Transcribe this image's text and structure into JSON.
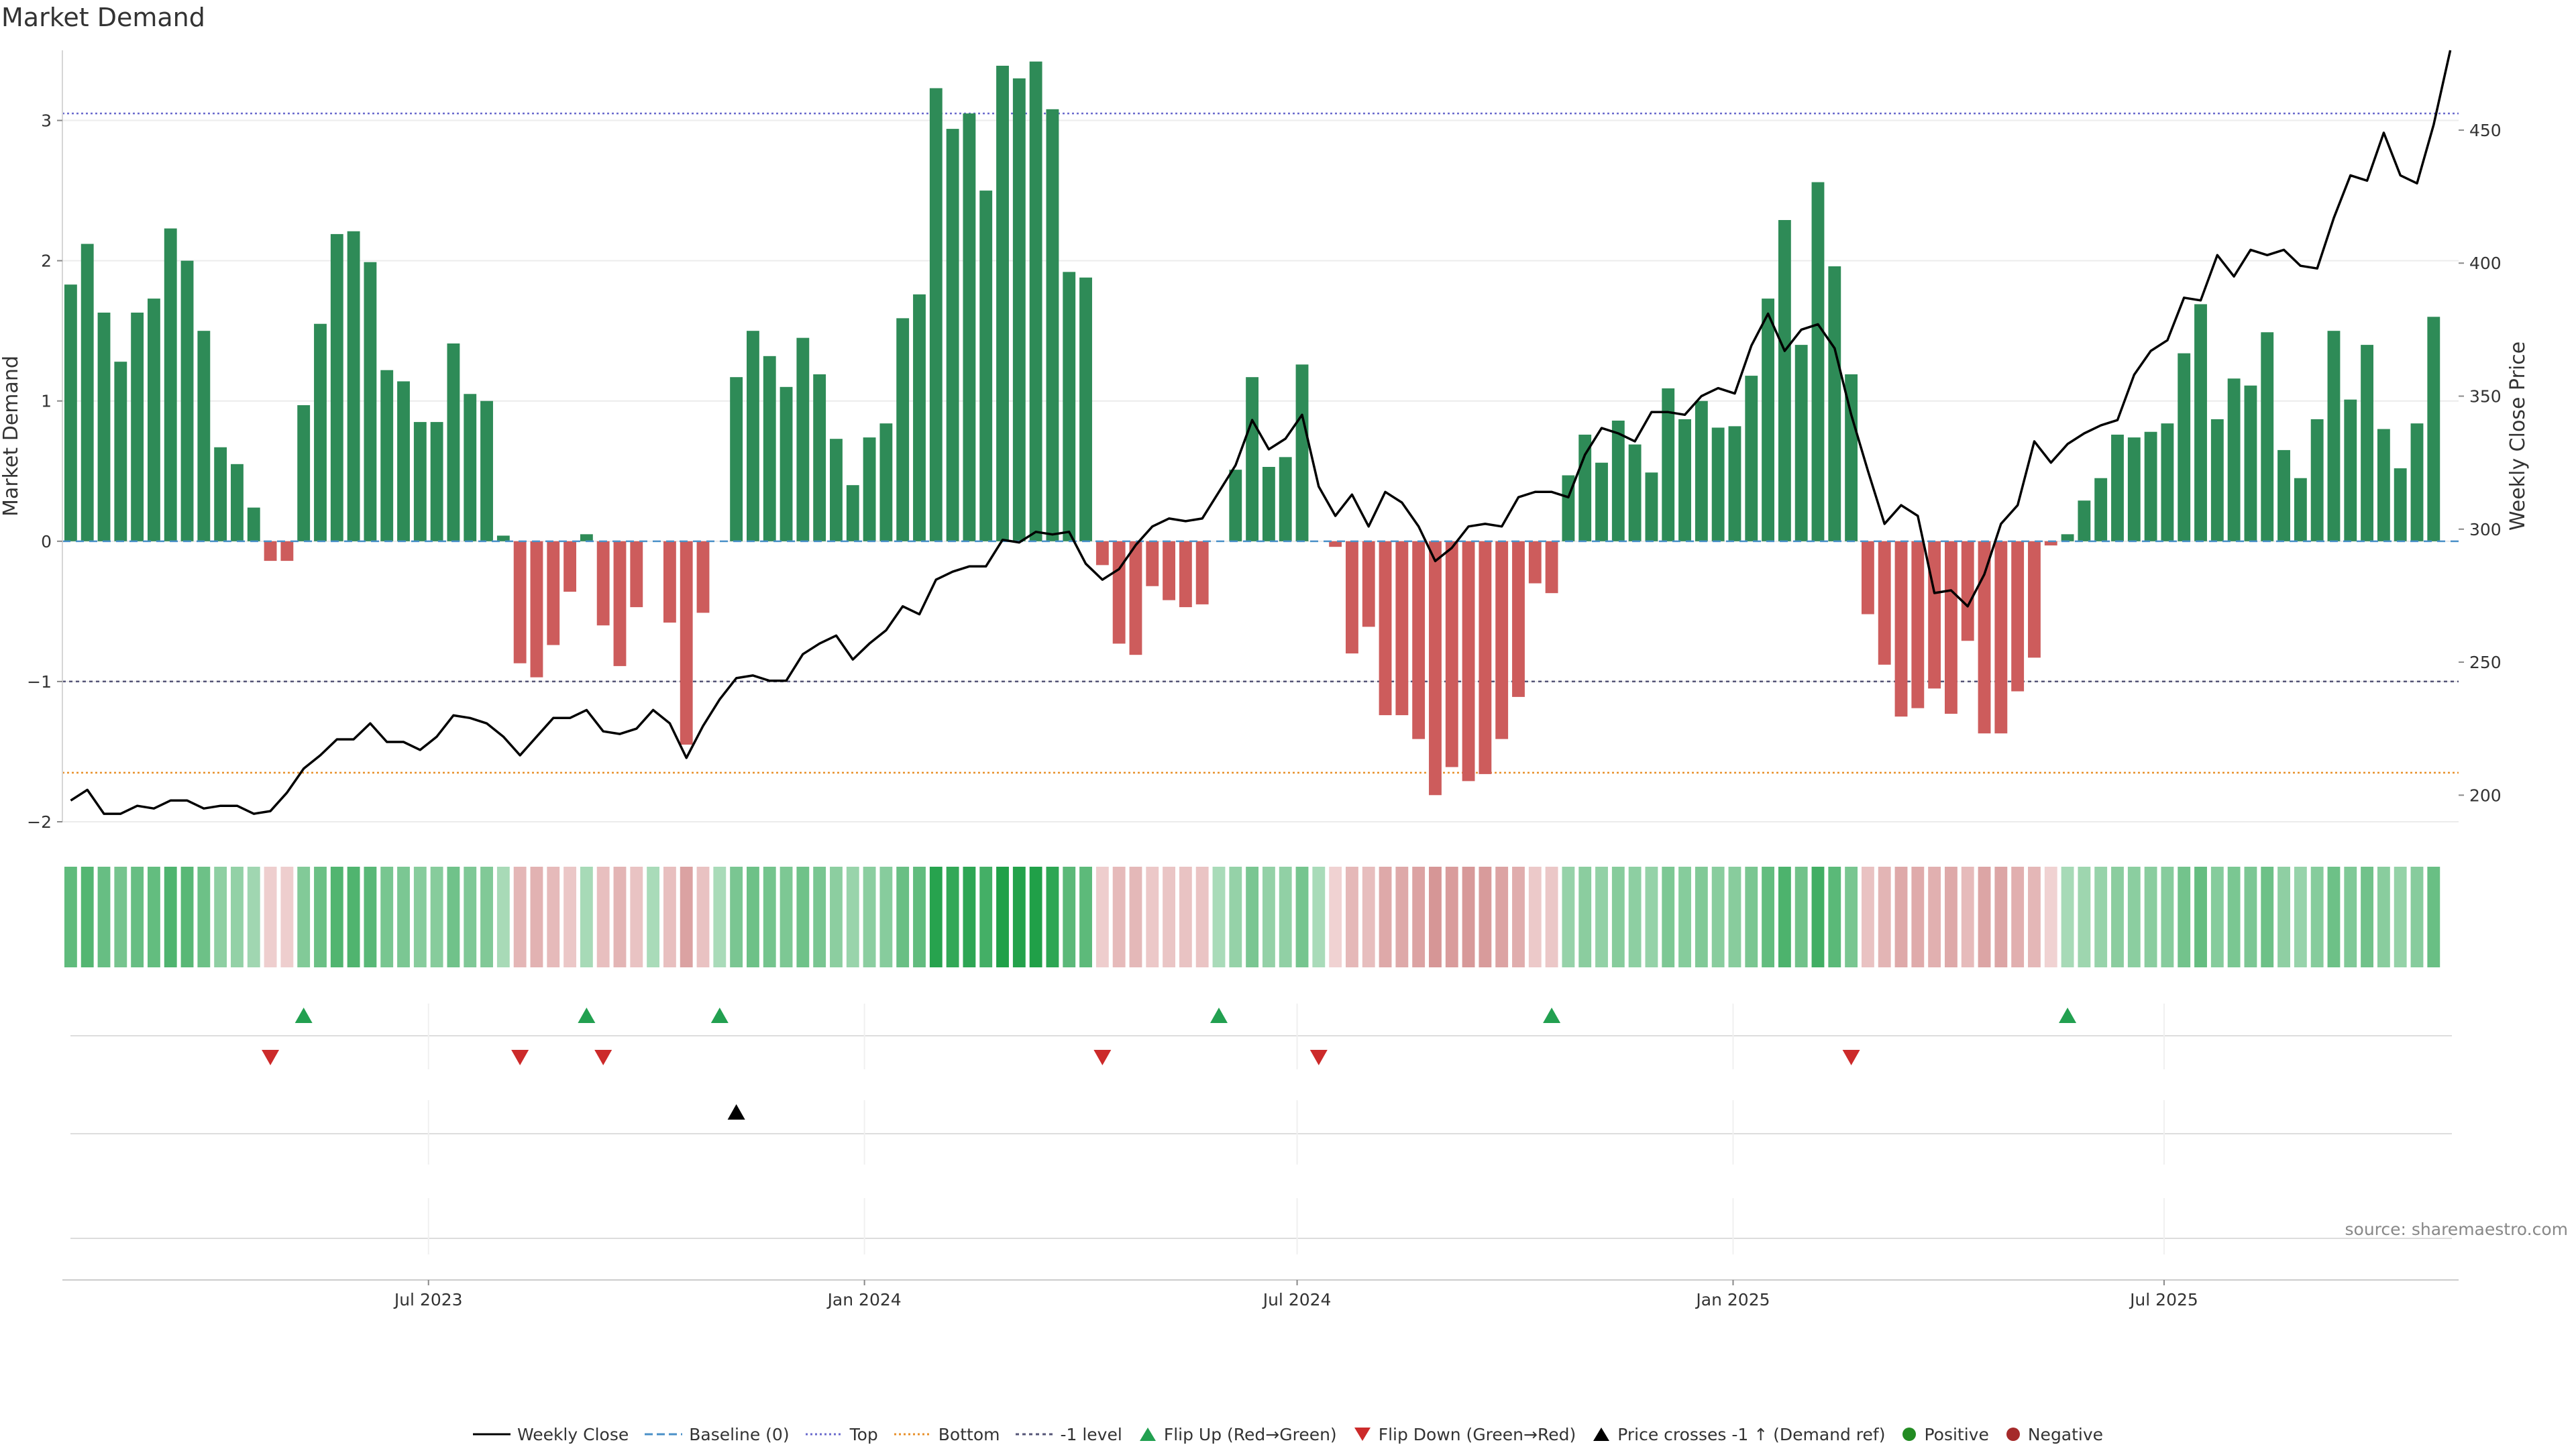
{
  "title": "Market Demand",
  "source": "source: sharemaestro.com",
  "colors": {
    "positive": "#2e8b57",
    "negative": "#cd5c5c",
    "price": "#000000",
    "baseline": "#4a90c8",
    "top": "#6a6acd",
    "bottom": "#e8902a",
    "minus1": "#555577",
    "flip_up": "#22a050",
    "flip_down": "#cc2a2a",
    "dot_pos": "#228b22",
    "dot_neg": "#a52a2a"
  },
  "legend": [
    {
      "key": "weekly_close",
      "label": "Weekly Close"
    },
    {
      "key": "baseline",
      "label": "Baseline (0)"
    },
    {
      "key": "top",
      "label": "Top"
    },
    {
      "key": "bottom",
      "label": "Bottom"
    },
    {
      "key": "minus1",
      "label": "-1 level"
    },
    {
      "key": "flip_up",
      "label": "Flip Up (Red→Green)"
    },
    {
      "key": "flip_down",
      "label": "Flip Down (Green→Red)"
    },
    {
      "key": "price_cross",
      "label": "Price crosses -1 ↑ (Demand ref)"
    },
    {
      "key": "positive",
      "label": "Positive"
    },
    {
      "key": "negative",
      "label": "Negative"
    }
  ],
  "chart_data": {
    "type": "bar",
    "title": "Market Demand",
    "ylabel": "Market Demand",
    "y2label": "Weekly Close Price",
    "ylim": [
      -2.0,
      3.5
    ],
    "y_ticks": [
      -2,
      -1,
      0,
      1,
      2,
      3
    ],
    "y_tick_labels": [
      "−2",
      "−1",
      "0",
      "1",
      "2",
      "3"
    ],
    "y2lim": [
      190,
      480
    ],
    "y2_ticks": [
      200,
      250,
      300,
      350,
      400,
      450
    ],
    "y2_tick_labels": [
      "200",
      "250",
      "300",
      "350",
      "400",
      "450"
    ],
    "levels": {
      "top": 3.05,
      "bottom": -1.65,
      "minus1": -1.0,
      "baseline": 0
    },
    "weeks": 144,
    "x_ticks": [
      {
        "label": "Jul 2023",
        "week": 21.5
      },
      {
        "label": "Jan 2024",
        "week": 47.7
      },
      {
        "label": "Jul 2024",
        "week": 73.7
      },
      {
        "label": "Jan 2025",
        "week": 99.9
      },
      {
        "label": "Jul 2025",
        "week": 125.8
      }
    ],
    "demand": [
      1.83,
      2.12,
      1.63,
      1.28,
      1.63,
      1.73,
      2.23,
      2.0,
      1.5,
      0.67,
      0.55,
      0.24,
      -0.14,
      -0.14,
      0.97,
      1.55,
      2.19,
      2.21,
      1.99,
      1.22,
      1.14,
      0.85,
      0.85,
      1.41,
      1.05,
      1.0,
      0.04,
      -0.87,
      -0.97,
      -0.74,
      -0.36,
      0.05,
      -0.6,
      -0.89,
      -0.47,
      0,
      -0.58,
      -1.45,
      -0.51,
      0,
      1.17,
      1.5,
      1.32,
      1.1,
      1.45,
      1.19,
      0.73,
      0.4,
      0.74,
      0.84,
      1.59,
      1.76,
      3.23,
      2.94,
      3.05,
      2.5,
      3.39,
      3.3,
      3.42,
      3.08,
      1.92,
      1.88,
      -0.17,
      -0.73,
      -0.81,
      -0.32,
      -0.42,
      -0.47,
      -0.45,
      0,
      0.51,
      1.17,
      0.53,
      0.6,
      1.26,
      0,
      -0.04,
      -0.8,
      -0.61,
      -1.24,
      -1.24,
      -1.41,
      -1.81,
      -1.61,
      -1.71,
      -1.66,
      -1.41,
      -1.11,
      -0.3,
      -0.37,
      0.47,
      0.76,
      0.56,
      0.86,
      0.69,
      0.49,
      1.09,
      0.87,
      1.0,
      0.81,
      0.82,
      1.18,
      1.73,
      2.29,
      1.4,
      2.56,
      1.96,
      1.19,
      -0.52,
      -0.88,
      -1.25,
      -1.19,
      -1.05,
      -1.23,
      -0.71,
      -1.37,
      -1.37,
      -1.07,
      -0.83,
      -0.03,
      0.05,
      0.29,
      0.45,
      0.76,
      0.74,
      0.78,
      0.84,
      1.34,
      1.69,
      0.87,
      1.16,
      1.11,
      1.49,
      0.65,
      0.45,
      0.87,
      1.5,
      1.01,
      1.4,
      0.8,
      0.52,
      0.84,
      1.6
    ],
    "price": [
      198,
      202,
      193,
      193,
      196,
      195,
      198,
      198,
      195,
      196,
      196,
      193,
      194,
      201,
      210,
      215,
      221,
      221,
      227,
      220,
      220,
      217,
      222,
      230,
      229,
      227,
      222,
      215,
      222,
      229,
      229,
      232,
      224,
      223,
      225,
      232,
      227,
      214,
      226,
      236,
      244,
      245,
      243,
      243,
      253,
      257,
      260,
      251,
      257,
      262,
      271,
      268,
      281,
      284,
      286,
      286,
      296,
      295,
      299,
      298,
      299,
      287,
      281,
      285,
      294,
      301,
      304,
      303,
      304,
      314,
      324,
      341,
      330,
      334,
      343,
      316,
      305,
      313,
      301,
      314,
      310,
      301,
      288,
      293,
      301,
      302,
      301,
      312,
      314,
      314,
      312,
      328,
      338,
      336,
      333,
      344,
      344,
      343,
      350,
      353,
      351,
      369,
      381,
      367,
      375,
      377,
      368,
      343,
      322,
      302,
      309,
      305,
      276,
      277,
      271,
      283,
      302,
      309,
      333,
      325,
      332,
      336,
      339,
      341,
      358,
      367,
      371,
      387,
      386,
      403,
      395,
      405,
      403,
      405,
      399,
      398,
      417,
      433,
      431,
      449,
      433,
      430,
      452,
      480
    ],
    "flip_up_weeks": [
      14,
      31,
      39,
      69,
      89,
      120
    ],
    "flip_down_weeks": [
      12,
      27,
      32,
      62,
      75,
      107
    ],
    "price_cross_weeks": [
      40
    ]
  }
}
